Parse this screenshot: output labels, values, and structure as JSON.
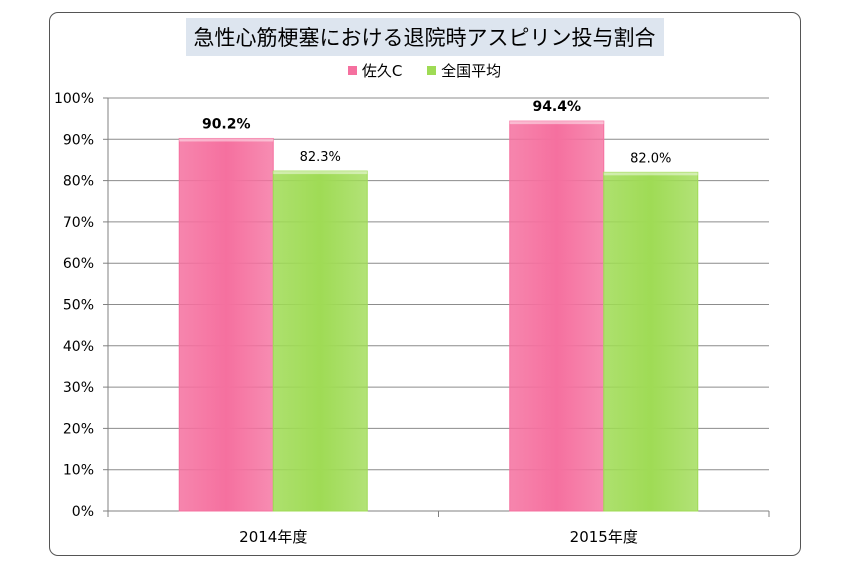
{
  "chart_data": {
    "type": "bar",
    "title": "急性心筋梗塞における退院時アスピリン投与割合",
    "categories": [
      "2014年度",
      "2015年度"
    ],
    "series": [
      {
        "name": "佐久C",
        "values": [
          90.2,
          94.4
        ],
        "labels": [
          "90.2%",
          "94.4%"
        ],
        "color": "#f5709f"
      },
      {
        "name": "全国平均",
        "values": [
          82.3,
          82.0
        ],
        "labels": [
          "82.3%",
          "82.0%"
        ],
        "color": "#9fdb55"
      }
    ],
    "y_ticks": [
      "0%",
      "10%",
      "20%",
      "30%",
      "40%",
      "50%",
      "60%",
      "70%",
      "80%",
      "90%",
      "100%"
    ],
    "ylim": [
      0,
      100
    ],
    "grid": true,
    "legend_position": "top"
  }
}
